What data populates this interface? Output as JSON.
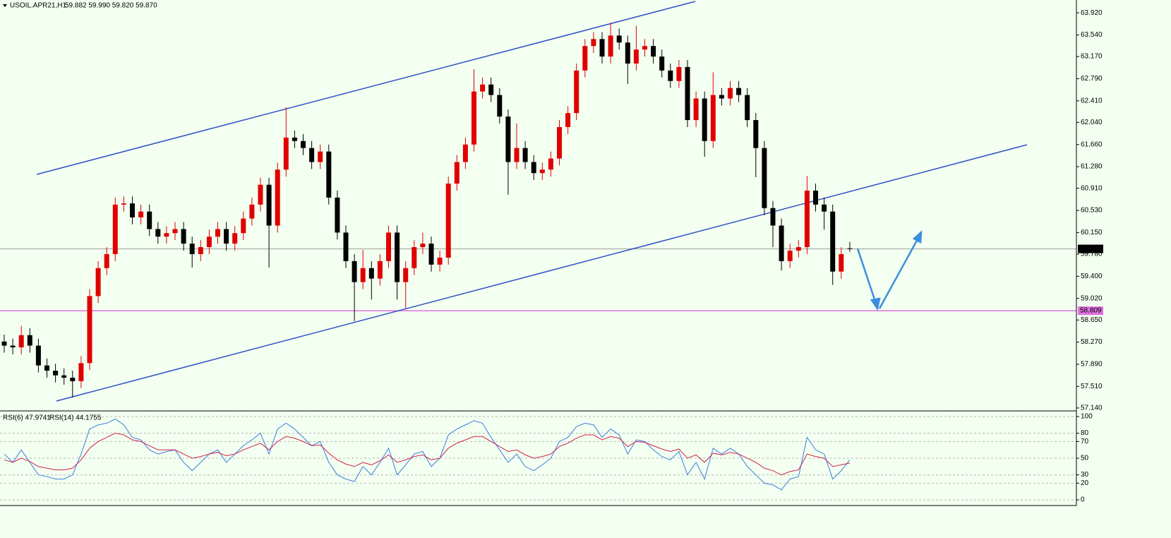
{
  "chart_data": [
    {
      "type": "candlestick",
      "title": "USOIL.APR21,H1",
      "subtitle": "59.882 59.990 59.820 59.870",
      "up_color": "#e00000",
      "down_color": "#000000",
      "background": "#f3fff0",
      "open": [
        58.28,
        58.21,
        58.18,
        58.39,
        58.21,
        57.87,
        57.78,
        57.7,
        57.66,
        57.6,
        57.91,
        59.06,
        59.54,
        59.78,
        60.63,
        60.65,
        60.41,
        60.51,
        60.21,
        60.08,
        60.14,
        60.21,
        59.96,
        59.78,
        59.9,
        60.08,
        60.21,
        59.96,
        60.14,
        60.39,
        60.63,
        60.97,
        60.27,
        61.23,
        61.78,
        61.72,
        61.6,
        61.36,
        61.54,
        60.75,
        60.15,
        59.66,
        59.3,
        59.54,
        59.36,
        59.66,
        60.15,
        59.3,
        59.54,
        59.9,
        59.96,
        59.6,
        59.72,
        60.99,
        61.36,
        61.66,
        62.57,
        62.69,
        62.51,
        62.14,
        61.36,
        61.6,
        61.36,
        61.17,
        61.23,
        61.42,
        61.96,
        62.2,
        62.93,
        63.35,
        63.47,
        63.17,
        63.53,
        63.41,
        63.05,
        63.29,
        63.35,
        63.17,
        62.93,
        62.75,
        62.99,
        62.08,
        62.45,
        61.72,
        62.51,
        62.45,
        62.63,
        62.51,
        62.08,
        61.6,
        60.57,
        60.27,
        59.66,
        59.84,
        59.9,
        60.87,
        60.63,
        60.51,
        59.48,
        59.88
      ],
      "high": [
        58.4,
        58.33,
        58.55,
        58.51,
        58.33,
        57.99,
        57.9,
        57.82,
        57.78,
        58.03,
        59.18,
        59.66,
        59.9,
        60.75,
        60.77,
        60.77,
        60.63,
        60.63,
        60.33,
        60.26,
        60.33,
        60.33,
        60.08,
        60.02,
        60.2,
        60.33,
        60.33,
        60.26,
        60.51,
        60.75,
        61.09,
        61.09,
        61.35,
        62.3,
        61.9,
        61.84,
        61.72,
        61.66,
        61.66,
        60.87,
        60.27,
        59.78,
        59.85,
        59.66,
        59.78,
        60.27,
        60.27,
        59.66,
        60.02,
        60.15,
        60.08,
        59.84,
        61.11,
        61.48,
        61.78,
        62.95,
        62.81,
        62.81,
        62.63,
        62.26,
        62.02,
        61.72,
        61.48,
        61.35,
        61.54,
        62.08,
        62.32,
        63.05,
        63.47,
        63.59,
        63.59,
        63.75,
        63.65,
        63.53,
        63.7,
        63.47,
        63.47,
        63.29,
        63.05,
        63.11,
        63.11,
        62.57,
        62.57,
        62.9,
        62.63,
        62.75,
        62.75,
        62.63,
        62.2,
        61.72,
        60.69,
        60.39,
        59.96,
        60.02,
        61.12,
        60.99,
        60.75,
        60.63,
        59.9,
        59.99
      ],
      "low": [
        58.09,
        58.06,
        58.06,
        58.09,
        57.75,
        57.66,
        57.58,
        57.54,
        57.32,
        57.48,
        57.79,
        58.94,
        59.42,
        59.66,
        60.51,
        60.29,
        60.29,
        60.09,
        59.96,
        59.96,
        60.02,
        59.84,
        59.55,
        59.66,
        59.78,
        59.96,
        59.84,
        59.84,
        60.02,
        60.27,
        60.51,
        59.55,
        60.15,
        61.11,
        61.6,
        61.48,
        61.24,
        61.24,
        60.63,
        60.03,
        59.54,
        58.63,
        59.18,
        59.0,
        59.24,
        59.54,
        59.0,
        58.85,
        59.42,
        59.78,
        59.48,
        59.48,
        59.6,
        60.87,
        61.24,
        61.54,
        62.45,
        62.39,
        62.02,
        60.8,
        61.24,
        61.24,
        61.05,
        61.05,
        61.11,
        61.3,
        61.84,
        62.08,
        62.81,
        63.23,
        63.05,
        63.05,
        63.29,
        62.7,
        62.93,
        63.17,
        63.05,
        62.81,
        62.63,
        62.63,
        61.96,
        61.96,
        61.45,
        61.6,
        62.33,
        62.33,
        62.39,
        61.96,
        61.1,
        60.45,
        59.9,
        59.5,
        59.54,
        59.72,
        59.78,
        60.51,
        60.2,
        59.25,
        59.36,
        59.82
      ],
      "close": [
        58.21,
        58.18,
        58.39,
        58.21,
        57.87,
        57.78,
        57.7,
        57.66,
        57.6,
        57.91,
        59.06,
        59.54,
        59.78,
        60.63,
        60.65,
        60.41,
        60.51,
        60.21,
        60.08,
        60.14,
        60.21,
        59.96,
        59.78,
        59.9,
        60.08,
        60.21,
        59.96,
        60.14,
        60.39,
        60.63,
        60.97,
        60.27,
        61.23,
        61.78,
        61.72,
        61.6,
        61.36,
        61.54,
        60.75,
        60.15,
        59.66,
        59.3,
        59.54,
        59.36,
        59.66,
        60.15,
        59.3,
        59.54,
        59.9,
        59.96,
        59.6,
        59.72,
        60.99,
        61.36,
        61.66,
        62.57,
        62.69,
        62.51,
        62.14,
        61.36,
        61.6,
        61.36,
        61.17,
        61.23,
        61.42,
        61.96,
        62.2,
        62.93,
        63.35,
        63.47,
        63.17,
        63.53,
        63.41,
        63.05,
        63.29,
        63.35,
        63.17,
        62.93,
        62.75,
        62.99,
        62.08,
        62.45,
        61.72,
        62.51,
        62.45,
        62.63,
        62.51,
        62.08,
        61.6,
        60.57,
        60.27,
        59.66,
        59.84,
        59.9,
        60.87,
        60.63,
        60.51,
        59.48,
        59.78,
        59.87
      ],
      "ylim": [
        57.09,
        64.14
      ],
      "yticks": [
        {
          "value": 63.92,
          "label": "63.920"
        },
        {
          "value": 63.54,
          "label": "63.540"
        },
        {
          "value": 63.17,
          "label": "63.170"
        },
        {
          "value": 62.79,
          "label": "62.790"
        },
        {
          "value": 62.41,
          "label": "62.410"
        },
        {
          "value": 62.04,
          "label": "62.040"
        },
        {
          "value": 61.66,
          "label": "61.660"
        },
        {
          "value": 61.28,
          "label": "61.280"
        },
        {
          "value": 60.91,
          "label": "60.910"
        },
        {
          "value": 60.53,
          "label": "60.530"
        },
        {
          "value": 60.15,
          "label": "60.150"
        },
        {
          "value": 59.78,
          "label": "59.780"
        },
        {
          "value": 59.4,
          "label": "59.400"
        },
        {
          "value": 59.02,
          "label": "59.020"
        },
        {
          "value": 58.65,
          "label": "58.650"
        },
        {
          "value": 58.27,
          "label": "58.270"
        },
        {
          "value": 57.89,
          "label": "57.890"
        },
        {
          "value": 57.51,
          "label": "57.510"
        },
        {
          "value": 57.14,
          "label": "57.140"
        }
      ],
      "last_price": {
        "value": 59.87,
        "label": "59.870",
        "color": "#000000"
      },
      "hlines": [
        {
          "value": 58.809,
          "label": "58.809",
          "color": "#e070e0"
        }
      ]
    },
    {
      "type": "line",
      "series": [
        {
          "name": "RSI(6) 47.9741",
          "color": "#3a7fe0",
          "values": [
            55,
            45,
            60,
            45,
            30,
            28,
            25,
            25,
            30,
            55,
            85,
            90,
            92,
            97,
            90,
            75,
            72,
            60,
            55,
            58,
            60,
            45,
            35,
            45,
            55,
            60,
            45,
            55,
            65,
            72,
            80,
            55,
            85,
            92,
            85,
            75,
            65,
            70,
            45,
            30,
            25,
            22,
            40,
            30,
            45,
            62,
            30,
            42,
            55,
            58,
            40,
            50,
            78,
            85,
            90,
            95,
            92,
            75,
            60,
            45,
            55,
            40,
            35,
            42,
            50,
            70,
            75,
            88,
            92,
            90,
            75,
            85,
            78,
            55,
            72,
            70,
            60,
            52,
            48,
            58,
            30,
            45,
            25,
            62,
            55,
            62,
            55,
            40,
            30,
            20,
            18,
            12,
            25,
            28,
            75,
            60,
            55,
            25,
            35,
            47.9741
          ]
        },
        {
          "name": "RSI(14) 44.1755",
          "color": "#d02050",
          "values": [
            48,
            45,
            50,
            46,
            40,
            38,
            36,
            36,
            38,
            48,
            62,
            70,
            75,
            80,
            78,
            72,
            70,
            65,
            60,
            60,
            60,
            55,
            50,
            52,
            55,
            57,
            53,
            55,
            60,
            64,
            68,
            60,
            70,
            76,
            74,
            70,
            65,
            66,
            56,
            48,
            43,
            40,
            45,
            42,
            47,
            54,
            45,
            48,
            52,
            54,
            48,
            50,
            62,
            68,
            72,
            76,
            76,
            70,
            64,
            58,
            60,
            54,
            50,
            52,
            55,
            64,
            68,
            74,
            78,
            78,
            72,
            76,
            74,
            64,
            70,
            69,
            65,
            61,
            58,
            61,
            50,
            54,
            45,
            56,
            54,
            57,
            55,
            50,
            45,
            38,
            35,
            30,
            34,
            36,
            55,
            52,
            50,
            40,
            42,
            44.1755
          ]
        }
      ],
      "ylim": [
        -6.8,
        104.2
      ],
      "yticks": [
        100,
        80,
        70,
        50,
        30,
        20,
        0
      ]
    }
  ]
}
